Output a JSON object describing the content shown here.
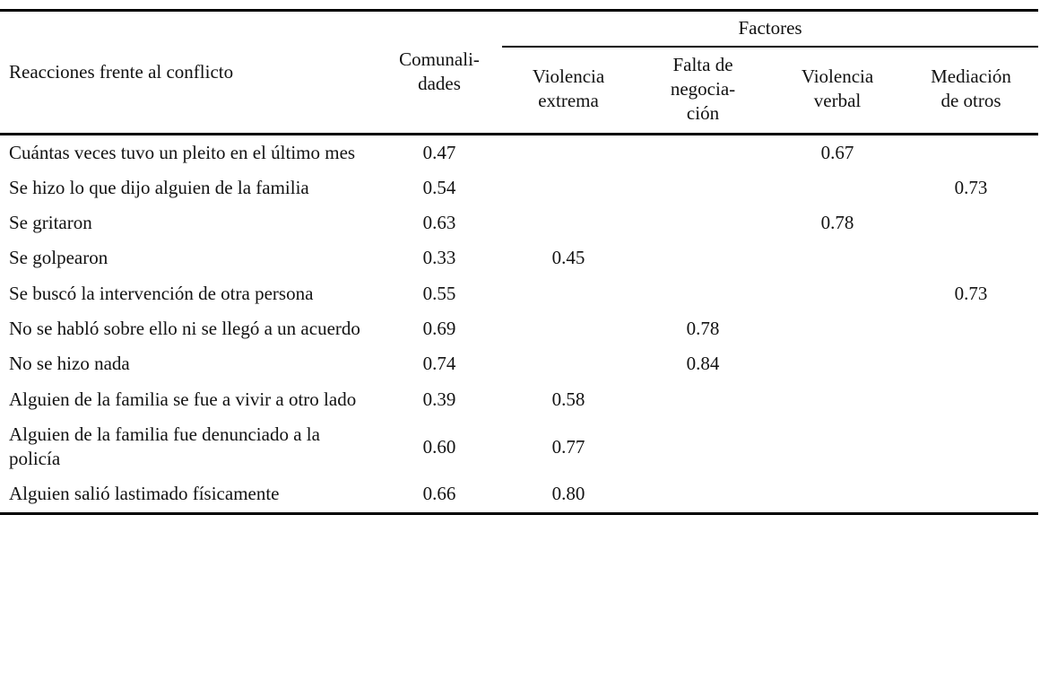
{
  "table": {
    "headers": {
      "reacciones": "Reacciones frente al conflicto",
      "comunalidades": "Comunali-\ndades",
      "factores": "Factores",
      "factor_columns": [
        "Violencia\nextrema",
        "Falta de\nnegocia-\nción",
        "Violencia\nverbal",
        "Mediación\nde otros"
      ]
    },
    "column_keys": [
      "label",
      "comunalidades",
      "violencia_extrema",
      "falta_negociacion",
      "violencia_verbal",
      "mediacion_otros"
    ],
    "rows": [
      [
        "Cuántas veces tuvo un pleito en el último mes",
        "0.47",
        "",
        "",
        "0.67",
        ""
      ],
      [
        "Se hizo lo que dijo alguien de la familia",
        "0.54",
        "",
        "",
        "",
        "0.73"
      ],
      [
        "Se gritaron",
        "0.63",
        "",
        "",
        "0.78",
        ""
      ],
      [
        "Se golpearon",
        "0.33",
        "0.45",
        "",
        "",
        ""
      ],
      [
        "Se buscó la intervención de otra persona",
        "0.55",
        "",
        "",
        "",
        "0.73"
      ],
      [
        "No se habló sobre ello ni se llegó a un acuerdo",
        "0.69",
        "",
        "0.78",
        "",
        ""
      ],
      [
        "No se hizo nada",
        "0.74",
        "",
        "0.84",
        "",
        ""
      ],
      [
        "Alguien de la familia se fue a vivir a otro lado",
        "0.39",
        "0.58",
        "",
        "",
        ""
      ],
      [
        "Alguien de la familia fue denunciado a la policía",
        "0.60",
        "0.77",
        "",
        "",
        ""
      ],
      [
        "Alguien salió lastimado físicamente",
        "0.66",
        "0.80",
        "",
        "",
        ""
      ]
    ],
    "text_color": "#121212",
    "rule_color": "#000000",
    "background_color": "#ffffff"
  }
}
